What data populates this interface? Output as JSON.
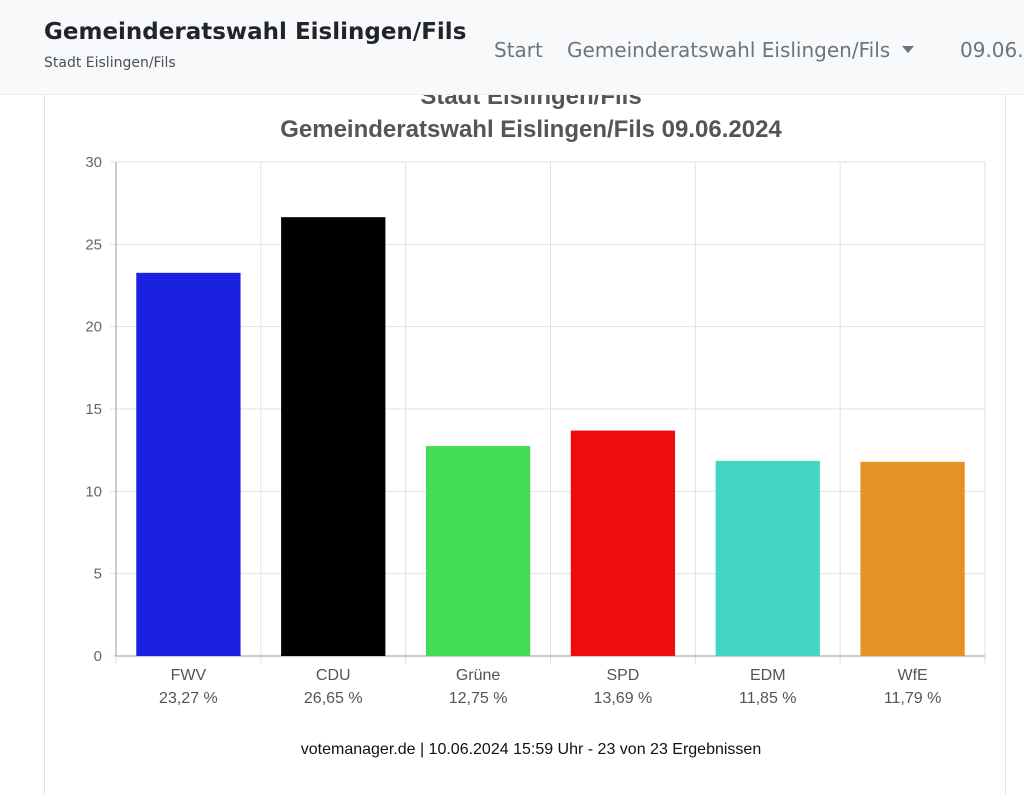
{
  "navbar": {
    "title": "Gemeinderatswahl Eislingen/Fils",
    "subtitle": "Stadt Eislingen/Fils",
    "links": {
      "start": "Start",
      "election": "Gemeinderatswahl Eislingen/Fils",
      "date": "09.06."
    }
  },
  "chart_data": {
    "type": "bar",
    "title": [
      "Stadt Eislingen/Fils",
      "Gemeinderatswahl Eislingen/Fils 09.06.2024"
    ],
    "categories": [
      "FWV",
      "CDU",
      "Grüne",
      "SPD",
      "EDM",
      "WfE"
    ],
    "values": [
      23.27,
      26.65,
      12.75,
      13.69,
      11.85,
      11.79
    ],
    "value_labels": [
      "23,27 %",
      "26,65 %",
      "12,75 %",
      "13,69 %",
      "11,85 %",
      "11,79 %"
    ],
    "colors": [
      "#1a22e0",
      "#000000",
      "#44db55",
      "#ee0c0c",
      "#44d6c4",
      "#e59124"
    ],
    "yticks": [
      "0",
      "5",
      "10",
      "15",
      "20",
      "25",
      "30"
    ],
    "ylim": [
      0,
      30
    ],
    "grid": true,
    "footer": "votemanager.de | 10.06.2024 15:59 Uhr - 23 von 23 Ergebnissen"
  }
}
